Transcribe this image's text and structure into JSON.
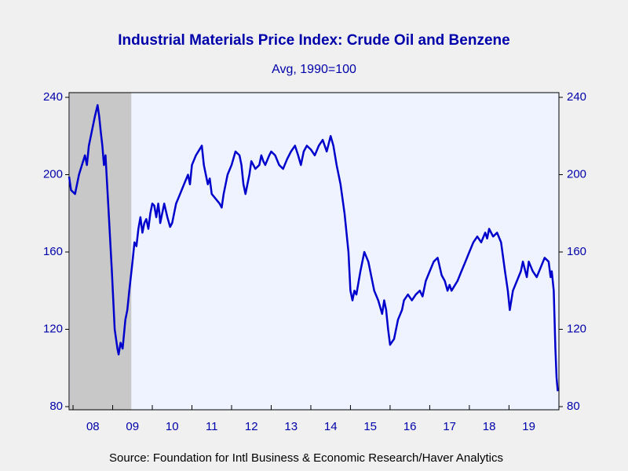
{
  "chart_data": {
    "type": "line",
    "title": "Industrial Materials Price Index: Crude Oil and Benzene",
    "subtitle": "Avg, 1990=100",
    "source": "Source:  Foundation for Intl Business & Economic Research/Haver Analytics",
    "xlim": [
      2007.9,
      2020.26
    ],
    "xticks": [
      {
        "value": 2008,
        "label": "08"
      },
      {
        "value": 2009,
        "label": "09"
      },
      {
        "value": 2010,
        "label": "10"
      },
      {
        "value": 2011,
        "label": "11"
      },
      {
        "value": 2012,
        "label": "12"
      },
      {
        "value": 2013,
        "label": "13"
      },
      {
        "value": 2014,
        "label": "14"
      },
      {
        "value": 2015,
        "label": "15"
      },
      {
        "value": 2016,
        "label": "16"
      },
      {
        "value": 2017,
        "label": "17"
      },
      {
        "value": 2018,
        "label": "18"
      },
      {
        "value": 2019,
        "label": "19"
      }
    ],
    "ylim": [
      80,
      240
    ],
    "yticks": [
      80,
      120,
      160,
      200,
      240
    ],
    "y2lim": [
      80,
      240
    ],
    "y2ticks": [
      80,
      120,
      160,
      200,
      240
    ],
    "recession": [
      2007.92,
      2009.47
    ],
    "recession_color": "#c8c8c8",
    "series": [
      {
        "name": "Crude Oil and Benzene",
        "color": "#0000cc",
        "x": [
          2007.9,
          2007.95,
          2008.05,
          2008.15,
          2008.3,
          2008.35,
          2008.4,
          2008.55,
          2008.62,
          2008.66,
          2008.7,
          2008.74,
          2008.78,
          2008.82,
          2008.9,
          2008.98,
          2009.05,
          2009.12,
          2009.15,
          2009.2,
          2009.25,
          2009.32,
          2009.37,
          2009.42,
          2009.5,
          2009.55,
          2009.6,
          2009.65,
          2009.7,
          2009.75,
          2009.8,
          2009.85,
          2009.9,
          2009.95,
          2010.0,
          2010.05,
          2010.1,
          2010.15,
          2010.18,
          2010.2,
          2010.3,
          2010.38,
          2010.45,
          2010.5,
          2010.55,
          2010.6,
          2010.7,
          2010.8,
          2010.9,
          2010.95,
          2011.0,
          2011.1,
          2011.25,
          2011.3,
          2011.35,
          2011.4,
          2011.45,
          2011.5,
          2011.7,
          2011.75,
          2011.8,
          2011.85,
          2011.9,
          2012.0,
          2012.1,
          2012.2,
          2012.25,
          2012.3,
          2012.35,
          2012.4,
          2012.45,
          2012.5,
          2012.55,
          2012.6,
          2012.7,
          2012.75,
          2012.8,
          2012.85,
          2012.95,
          2013.0,
          2013.1,
          2013.2,
          2013.3,
          2013.4,
          2013.5,
          2013.6,
          2013.68,
          2013.75,
          2013.82,
          2013.9,
          2014.0,
          2014.1,
          2014.2,
          2014.3,
          2014.4,
          2014.5,
          2014.57,
          2014.65,
          2014.75,
          2014.85,
          2014.95,
          2015.0,
          2015.05,
          2015.1,
          2015.15,
          2015.25,
          2015.35,
          2015.45,
          2015.5,
          2015.6,
          2015.7,
          2015.8,
          2015.85,
          2015.9,
          2015.95,
          2016.0,
          2016.1,
          2016.2,
          2016.3,
          2016.35,
          2016.45,
          2016.55,
          2016.65,
          2016.75,
          2016.82,
          2016.9,
          2017.0,
          2017.1,
          2017.2,
          2017.3,
          2017.38,
          2017.45,
          2017.5,
          2017.55,
          2017.7,
          2017.8,
          2017.9,
          2018.0,
          2018.1,
          2018.2,
          2018.3,
          2018.4,
          2018.45,
          2018.5,
          2018.6,
          2018.7,
          2018.8,
          2018.9,
          2018.97,
          2019.02,
          2019.1,
          2019.2,
          2019.3,
          2019.35,
          2019.45,
          2019.5,
          2019.6,
          2019.7,
          2019.8,
          2019.9,
          2020.0,
          2020.05,
          2020.08,
          2020.13,
          2020.17,
          2020.2,
          2020.23
        ],
        "values": [
          199,
          192,
          190,
          200,
          210,
          205,
          215,
          230,
          236,
          230,
          222,
          215,
          205,
          210,
          180,
          150,
          120,
          110,
          107,
          113,
          110,
          125,
          130,
          140,
          155,
          165,
          163,
          172,
          178,
          170,
          175,
          177,
          172,
          180,
          185,
          184,
          178,
          185,
          180,
          175,
          185,
          178,
          173,
          175,
          180,
          185,
          190,
          195,
          200,
          195,
          205,
          210,
          215,
          205,
          200,
          195,
          198,
          190,
          185,
          183,
          190,
          195,
          200,
          205,
          212,
          210,
          205,
          195,
          190,
          195,
          200,
          207,
          205,
          203,
          205,
          210,
          207,
          205,
          210,
          212,
          210,
          205,
          203,
          208,
          212,
          215,
          210,
          205,
          212,
          215,
          213,
          210,
          215,
          218,
          212,
          220,
          215,
          205,
          195,
          180,
          160,
          140,
          135,
          140,
          138,
          150,
          160,
          155,
          150,
          140,
          135,
          128,
          135,
          130,
          120,
          112,
          115,
          125,
          130,
          135,
          138,
          135,
          138,
          140,
          137,
          145,
          150,
          155,
          157,
          148,
          145,
          140,
          143,
          140,
          145,
          150,
          155,
          160,
          165,
          168,
          165,
          170,
          167,
          172,
          168,
          170,
          165,
          150,
          140,
          130,
          140,
          145,
          150,
          155,
          147,
          155,
          150,
          147,
          152,
          157,
          155,
          147,
          150,
          140,
          110,
          95,
          88
        ]
      }
    ]
  }
}
